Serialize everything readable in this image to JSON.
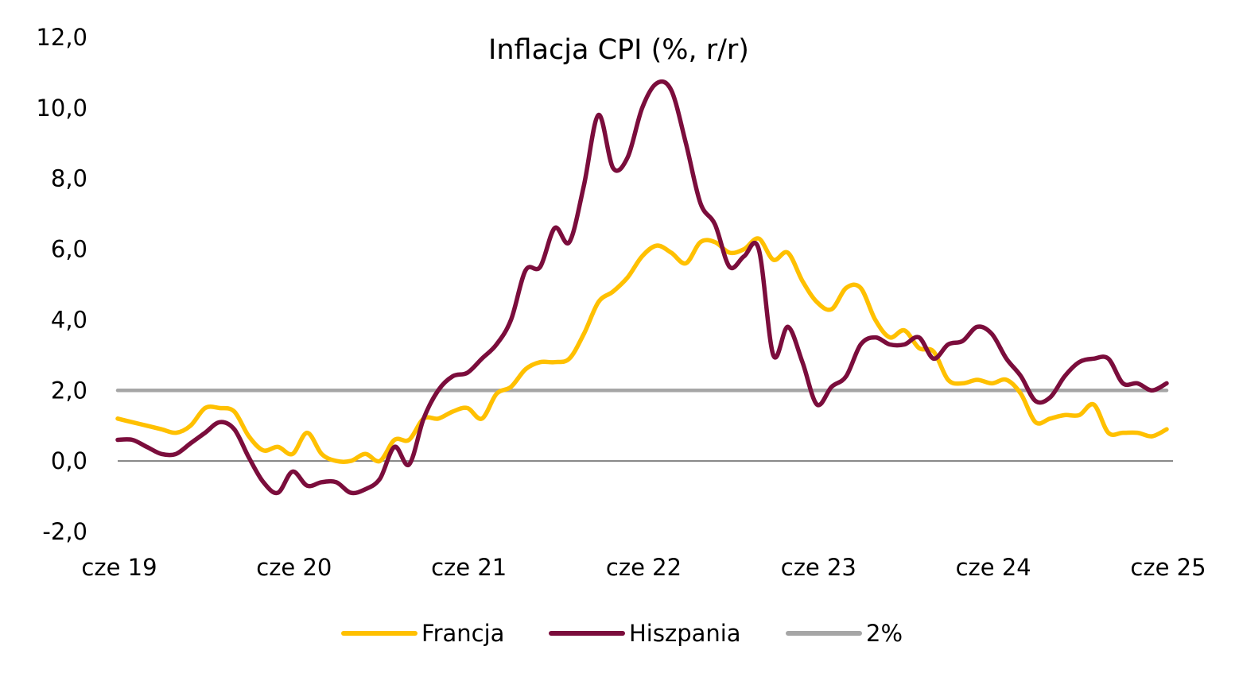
{
  "chart_data": {
    "type": "line",
    "title": "Inflacja CPI (%, r/r)",
    "xlabel": "",
    "ylabel": "",
    "ylim": [
      -2,
      12
    ],
    "y_ticks": [
      "12,0",
      "10,0",
      "8,0",
      "6,0",
      "4,0",
      "2,0",
      "0,0",
      "-2,0"
    ],
    "x_ticks": [
      "cze 19",
      "cze 20",
      "cze 21",
      "cze 22",
      "cze 23",
      "cze 24",
      "cze 25"
    ],
    "x_start": "2019-06",
    "x_end": "2025-06",
    "grid": false,
    "legend_position": "bottom",
    "series": [
      {
        "name": "Francja",
        "color": "#FFC000",
        "values": [
          1.2,
          1.1,
          1.0,
          0.9,
          0.8,
          1.0,
          1.5,
          1.5,
          1.4,
          0.7,
          0.3,
          0.4,
          0.2,
          0.8,
          0.2,
          0.0,
          0.0,
          0.2,
          0.0,
          0.6,
          0.6,
          1.2,
          1.2,
          1.4,
          1.5,
          1.2,
          1.9,
          2.1,
          2.6,
          2.8,
          2.8,
          2.9,
          3.6,
          4.5,
          4.8,
          5.2,
          5.8,
          6.1,
          5.9,
          5.6,
          6.2,
          6.2,
          5.9,
          6.0,
          6.3,
          5.7,
          5.9,
          5.1,
          4.5,
          4.3,
          4.9,
          4.9,
          4.0,
          3.5,
          3.7,
          3.2,
          3.1,
          2.3,
          2.2,
          2.3,
          2.2,
          2.3,
          1.9,
          1.1,
          1.2,
          1.3,
          1.3,
          1.6,
          0.8,
          0.8,
          0.8,
          0.7,
          0.9
        ],
        "label": "Francja"
      },
      {
        "name": "Hiszpania",
        "color": "#7B0D3C",
        "values": [
          0.6,
          0.6,
          0.4,
          0.2,
          0.2,
          0.5,
          0.8,
          1.1,
          0.9,
          0.1,
          -0.6,
          -0.9,
          -0.3,
          -0.7,
          -0.6,
          -0.6,
          -0.9,
          -0.8,
          -0.5,
          0.4,
          -0.1,
          1.2,
          2.0,
          2.4,
          2.5,
          2.9,
          3.3,
          4.0,
          5.4,
          5.5,
          6.6,
          6.2,
          7.8,
          9.8,
          8.3,
          8.6,
          10.0,
          10.7,
          10.5,
          9.0,
          7.3,
          6.7,
          5.5,
          5.8,
          6.0,
          3.0,
          3.8,
          2.8,
          1.6,
          2.1,
          2.4,
          3.3,
          3.5,
          3.3,
          3.3,
          3.5,
          2.9,
          3.3,
          3.4,
          3.8,
          3.6,
          2.9,
          2.4,
          1.7,
          1.8,
          2.4,
          2.8,
          2.9,
          2.9,
          2.2,
          2.2,
          2.0,
          2.2
        ],
        "label": "Hiszpania"
      },
      {
        "name": "2%",
        "color": "#A6A6A6",
        "values": [
          2.0,
          2.0
        ],
        "label": "2%"
      }
    ]
  }
}
